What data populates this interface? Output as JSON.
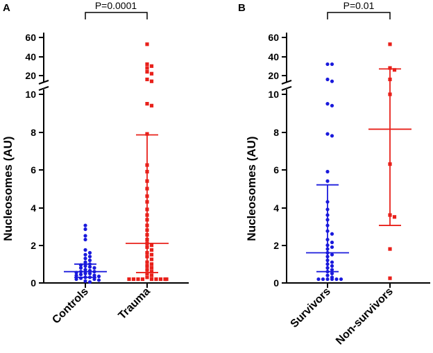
{
  "chart_data": [
    {
      "panel": "A",
      "type": "scatter",
      "ylabel": "Nucleosomes (AU)",
      "categories": [
        "Controls",
        "Trauma"
      ],
      "colors": [
        "#1a1adc",
        "#e8201a"
      ],
      "markers": [
        "circle",
        "square"
      ],
      "significance": "P=0.0001",
      "y_lower_ticks": [
        "0",
        "2",
        "4",
        "6",
        "8",
        "10"
      ],
      "y_upper_ticks": [
        "20",
        "40",
        "60"
      ],
      "groups": [
        {
          "name": "Controls",
          "median": 0.6,
          "q1": 0.3,
          "q3": 1.0,
          "points": [
            3.05,
            2.85,
            2.5,
            2.3,
            1.75,
            1.6,
            1.5,
            1.4,
            1.3,
            1.2,
            1.1,
            1.0,
            0.95,
            0.9,
            0.85,
            0.8,
            0.8,
            0.7,
            0.65,
            0.6,
            0.6,
            0.55,
            0.5,
            0.5,
            0.45,
            0.4,
            0.4,
            0.35,
            0.3,
            0.3,
            0.25,
            0.2,
            0.2,
            0.15,
            0.1,
            0.05
          ]
        },
        {
          "name": "Trauma",
          "median": 2.1,
          "q1": 0.55,
          "q3": 7.85,
          "points": [
            53,
            32,
            30,
            28,
            24,
            22,
            16,
            14,
            9.5,
            9.4,
            7.9,
            6.25,
            5.9,
            5.4,
            5.0,
            4.6,
            4.3,
            3.9,
            3.6,
            3.35,
            3.05,
            2.8,
            2.55,
            2.3,
            2.1,
            2.0,
            1.9,
            1.75,
            1.6,
            1.5,
            1.4,
            1.25,
            1.1,
            1.0,
            0.9,
            0.8,
            0.7,
            0.6,
            0.5,
            0.4,
            0.3,
            0.2,
            0.2,
            0.2,
            0.2,
            0.2,
            0.2,
            0.2,
            0.2,
            0.2
          ]
        }
      ]
    },
    {
      "panel": "B",
      "type": "scatter",
      "ylabel": "Nucleosomes (AU)",
      "categories": [
        "Survivors",
        "Non-survivors"
      ],
      "colors": [
        "#1a1adc",
        "#e8201a"
      ],
      "markers": [
        "circle",
        "square"
      ],
      "significance": "P=0.01",
      "y_lower_ticks": [
        "0",
        "2",
        "4",
        "6",
        "8",
        "10"
      ],
      "y_upper_ticks": [
        "20",
        "40",
        "60"
      ],
      "groups": [
        {
          "name": "Survivors",
          "median": 1.6,
          "q1": 0.6,
          "q3": 5.2,
          "points": [
            32,
            32,
            16,
            14,
            9.5,
            9.4,
            7.9,
            7.8,
            5.9,
            5.4,
            4.3,
            3.9,
            3.6,
            3.35,
            3.05,
            2.75,
            2.6,
            2.3,
            2.15,
            2.0,
            1.9,
            1.8,
            1.6,
            1.5,
            1.4,
            1.2,
            1.1,
            1.0,
            0.9,
            0.8,
            0.7,
            0.6,
            0.5,
            0.4,
            0.3,
            0.2,
            0.2,
            0.2,
            0.2,
            0.2,
            0.2
          ]
        },
        {
          "name": "Non-survivors",
          "median": 8.15,
          "q1": 3.05,
          "q3": 27,
          "points": [
            53,
            28,
            26,
            16,
            10,
            6.3,
            3.6,
            3.5,
            1.8,
            0.25
          ]
        }
      ]
    }
  ]
}
